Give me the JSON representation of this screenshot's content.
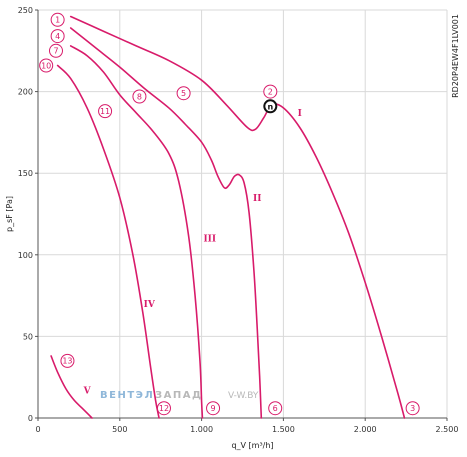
{
  "chart_data": {
    "type": "line",
    "title": "",
    "xlabel": "q_V [m³/h]",
    "ylabel": "p_sF [Pa]",
    "xlim": [
      0,
      2500
    ],
    "ylim": [
      0,
      250
    ],
    "x_ticks": [
      0,
      500,
      1000,
      1500,
      2000,
      2500
    ],
    "x_tick_labels": [
      "0",
      "500",
      "1.000",
      "1.500",
      "2.000",
      "2.500"
    ],
    "y_ticks": [
      0,
      50,
      100,
      150,
      200,
      250
    ],
    "y_tick_labels": [
      "0",
      "50",
      "100",
      "150",
      "200",
      "250"
    ],
    "grid": true,
    "legend": "none",
    "side_code": "RD20P4EW4F1LV001",
    "series": [
      {
        "name": "I",
        "x": [
          200,
          400,
          600,
          800,
          1000,
          1150,
          1280,
          1330,
          1380,
          1430,
          1500,
          1600,
          1700,
          1800,
          1900,
          2000,
          2100,
          2200,
          2240
        ],
        "y": [
          246,
          237,
          228,
          219,
          207,
          192,
          178,
          177,
          184,
          192,
          190,
          178,
          160,
          138,
          113,
          83,
          50,
          15,
          0
        ]
      },
      {
        "name": "II",
        "x": [
          200,
          350,
          500,
          650,
          800,
          900,
          1000,
          1060,
          1100,
          1140,
          1170,
          1200,
          1230,
          1260,
          1290,
          1320,
          1340,
          1355,
          1365
        ],
        "y": [
          239,
          227,
          215,
          202,
          190,
          180,
          169,
          158,
          148,
          141,
          143,
          148,
          149,
          144,
          126,
          90,
          55,
          25,
          0
        ]
      },
      {
        "name": "III",
        "x": [
          200,
          300,
          400,
          500,
          600,
          700,
          800,
          860,
          920,
          960,
          990,
          1000,
          1005
        ],
        "y": [
          228,
          222,
          212,
          198,
          187,
          176,
          162,
          145,
          112,
          75,
          35,
          10,
          0
        ]
      },
      {
        "name": "IV",
        "x": [
          120,
          200,
          300,
          400,
          500,
          580,
          640,
          690,
          720,
          740
        ],
        "y": [
          216,
          208,
          190,
          165,
          135,
          100,
          65,
          30,
          10,
          0
        ]
      },
      {
        "name": "V",
        "x": [
          80,
          120,
          170,
          220,
          270,
          310,
          330
        ],
        "y": [
          38,
          28,
          18,
          11,
          6,
          2,
          0
        ]
      }
    ],
    "series_labels": [
      {
        "text": "I",
        "x": 1600,
        "y": 185,
        "series": "I"
      },
      {
        "text": "II",
        "x": 1340,
        "y": 133,
        "series": "II"
      },
      {
        "text": "III",
        "x": 1050,
        "y": 108,
        "series": "III"
      },
      {
        "text": "IV",
        "x": 680,
        "y": 68,
        "series": "IV"
      },
      {
        "text": "V",
        "x": 300,
        "y": 15,
        "series": "V"
      }
    ],
    "operating_points": [
      {
        "label": "1",
        "x": 120,
        "y": 244
      },
      {
        "label": "2",
        "x": 1420,
        "y": 200
      },
      {
        "label": "3",
        "x": 2290,
        "y": 6
      },
      {
        "label": "4",
        "x": 120,
        "y": 234
      },
      {
        "label": "5",
        "x": 890,
        "y": 199
      },
      {
        "label": "6",
        "x": 1450,
        "y": 6
      },
      {
        "label": "7",
        "x": 110,
        "y": 225
      },
      {
        "label": "8",
        "x": 620,
        "y": 197
      },
      {
        "label": "9",
        "x": 1070,
        "y": 6
      },
      {
        "label": "10",
        "x": 50,
        "y": 216
      },
      {
        "label": "11",
        "x": 410,
        "y": 188
      },
      {
        "label": "12",
        "x": 770,
        "y": 6
      },
      {
        "label": "13",
        "x": 180,
        "y": 35
      }
    ],
    "highlight_point": {
      "label": "n",
      "x": 1420,
      "y": 191
    }
  },
  "colors": {
    "curve": "#d81b6a",
    "grid": "#d9d9d9",
    "axis": "#555555",
    "marker_fill": "#ffffff",
    "highlight_stroke": "#111111",
    "watermark_primary": "#8fb7d9",
    "watermark_secondary": "#b8b8b8"
  },
  "watermark": {
    "part1": "ВЕНТЭЛ",
    "part2": "ЗАПАД",
    "url": "V-W.BY"
  }
}
